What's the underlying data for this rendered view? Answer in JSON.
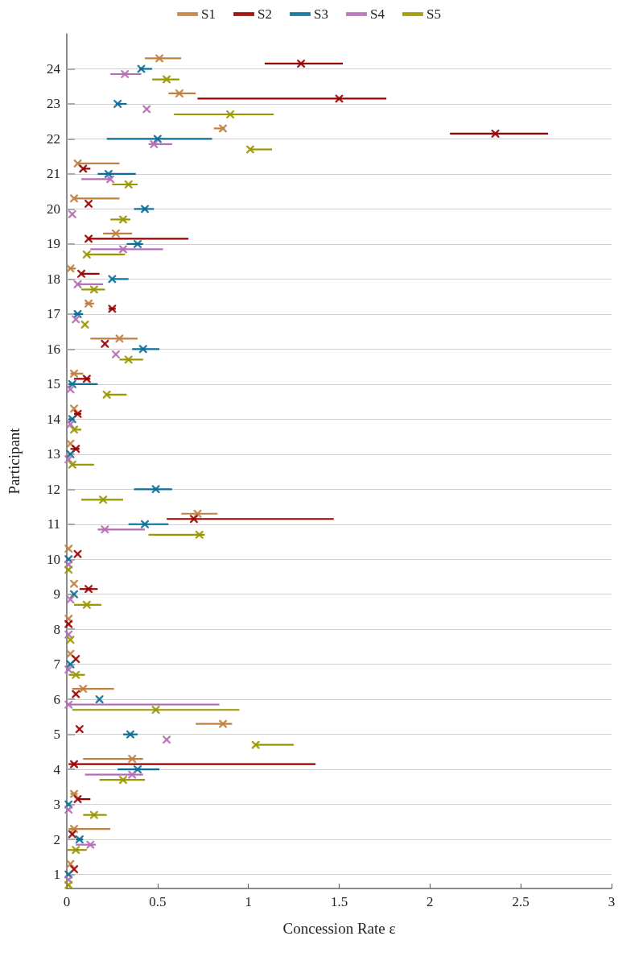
{
  "chart_data": {
    "type": "scatter",
    "xlabel": "Concession Rate ε",
    "ylabel": "Participant",
    "xlim": [
      0,
      3
    ],
    "xticks": [
      0,
      0.5,
      1,
      1.5,
      2,
      2.5,
      3
    ],
    "ylim": [
      0.6,
      25
    ],
    "yticks": [
      1,
      2,
      3,
      4,
      5,
      6,
      7,
      8,
      9,
      10,
      11,
      12,
      13,
      14,
      15,
      16,
      17,
      18,
      19,
      20,
      21,
      22,
      23,
      24
    ],
    "grid": "y",
    "legend": "top",
    "marker": "cross",
    "line_style": "solid",
    "series": [
      {
        "name": "S1",
        "color": "#c08040",
        "x": [
          0.02,
          0.04,
          0.04,
          0.36,
          0.86,
          0.09,
          0.02,
          0.01,
          0.04,
          0.01,
          0.72,
          null,
          0.02,
          0.04,
          0.04,
          0.29,
          0.12,
          0.02,
          0.27,
          0.04,
          0.06,
          0.86,
          0.62,
          0.51
        ],
        "values": [
          1.3,
          2.3,
          3.3,
          4.3,
          5.3,
          6.3,
          7.3,
          8.3,
          9.3,
          10.3,
          11.3,
          null,
          13.3,
          14.3,
          15.3,
          16.3,
          17.3,
          18.3,
          19.3,
          20.3,
          21.3,
          22.3,
          23.3,
          24.3
        ],
        "xerrors": [
          null,
          [
            0.01,
            0.24
          ],
          [
            0.02,
            0.06
          ],
          [
            0.09,
            0.42
          ],
          [
            0.71,
            0.91
          ],
          [
            0.03,
            0.26
          ],
          null,
          null,
          null,
          null,
          [
            0.63,
            0.83
          ],
          null,
          null,
          null,
          [
            0.02,
            0.09
          ],
          [
            0.13,
            0.39
          ],
          [
            0.1,
            0.15
          ],
          [
            0.01,
            0.05
          ],
          [
            0.2,
            0.36
          ],
          [
            0.04,
            0.29
          ],
          [
            0.06,
            0.29
          ],
          [
            0.81,
            0.87
          ],
          [
            0.56,
            0.71
          ],
          [
            0.43,
            0.63
          ]
        ]
      },
      {
        "name": "S2",
        "color": "#990000",
        "x": [
          0.04,
          0.03,
          0.06,
          0.04,
          0.07,
          0.05,
          0.05,
          0.01,
          0.12,
          0.06,
          0.7,
          null,
          0.05,
          0.06,
          0.11,
          0.21,
          0.25,
          0.08,
          0.12,
          0.12,
          0.09,
          2.36,
          1.5,
          1.29
        ],
        "values": [
          1.15,
          2.15,
          3.15,
          4.15,
          5.15,
          6.15,
          7.15,
          8.15,
          9.15,
          10.15,
          11.15,
          null,
          13.15,
          14.15,
          15.15,
          16.15,
          17.15,
          18.15,
          19.15,
          20.15,
          21.15,
          22.15,
          23.15,
          24.15
        ],
        "xerrors": [
          null,
          null,
          [
            0.06,
            0.13
          ],
          [
            0.01,
            1.37
          ],
          null,
          null,
          null,
          null,
          [
            0.07,
            0.17
          ],
          null,
          [
            0.55,
            1.47
          ],
          null,
          [
            0.02,
            0.07
          ],
          [
            0.04,
            0.08
          ],
          [
            0.04,
            0.13
          ],
          null,
          [
            0.23,
            0.27
          ],
          [
            0.08,
            0.18
          ],
          [
            0.12,
            0.67
          ],
          null,
          [
            0.09,
            0.13
          ],
          [
            2.11,
            2.65
          ],
          [
            0.72,
            1.76
          ],
          [
            1.09,
            1.52
          ]
        ]
      },
      {
        "name": "S3",
        "color": "#0a6e96",
        "x": [
          0.01,
          0.07,
          0.01,
          0.39,
          0.35,
          0.18,
          0.02,
          null,
          0.04,
          0.01,
          0.43,
          0.49,
          0.02,
          0.03,
          0.03,
          0.42,
          0.06,
          0.25,
          0.39,
          0.43,
          0.23,
          0.5,
          0.28,
          0.41
        ],
        "values": [
          1,
          2,
          3,
          4,
          5,
          6,
          7,
          null,
          9,
          10,
          11,
          12,
          13,
          14,
          15,
          16,
          17,
          18,
          19,
          20,
          21,
          22,
          23,
          24
        ],
        "xerrors": [
          null,
          [
            0.05,
            0.09
          ],
          null,
          [
            0.28,
            0.51
          ],
          [
            0.31,
            0.39
          ],
          null,
          null,
          null,
          null,
          null,
          [
            0.34,
            0.56
          ],
          [
            0.37,
            0.58
          ],
          null,
          [
            0.01,
            0.04
          ],
          [
            0.01,
            0.17
          ],
          [
            0.36,
            0.51
          ],
          [
            0.04,
            0.09
          ],
          [
            0.25,
            0.34
          ],
          [
            0.33,
            0.42
          ],
          [
            0.37,
            0.48
          ],
          [
            0.17,
            0.38
          ],
          [
            0.22,
            0.8
          ],
          [
            0.27,
            0.33
          ],
          [
            0.4,
            0.47
          ]
        ]
      },
      {
        "name": "S4",
        "color": "#b46eb4",
        "x": [
          0.01,
          0.13,
          0.01,
          0.36,
          0.55,
          0.01,
          0.01,
          0.01,
          0.02,
          0.01,
          0.21,
          null,
          0.01,
          0.02,
          0.02,
          0.27,
          0.05,
          0.06,
          0.31,
          0.03,
          0.24,
          0.48,
          0.44,
          0.32
        ],
        "values": [
          0.85,
          1.85,
          2.85,
          3.85,
          4.85,
          5.85,
          6.85,
          7.85,
          8.85,
          9.85,
          10.85,
          null,
          12.85,
          13.85,
          14.85,
          15.85,
          16.85,
          17.85,
          18.85,
          19.85,
          20.85,
          21.85,
          22.85,
          23.85
        ],
        "xerrors": [
          null,
          [
            0.05,
            0.16
          ],
          null,
          [
            0.1,
            0.42
          ],
          null,
          [
            0.01,
            0.84
          ],
          null,
          null,
          null,
          null,
          [
            0.17,
            0.43
          ],
          null,
          null,
          null,
          null,
          null,
          null,
          [
            0.06,
            0.2
          ],
          [
            0.13,
            0.53
          ],
          null,
          [
            0.08,
            0.24
          ],
          [
            0.45,
            0.58
          ],
          null,
          [
            0.24,
            0.41
          ]
        ]
      },
      {
        "name": "S5",
        "color": "#9a9600",
        "x": [
          0.01,
          0.05,
          0.15,
          0.31,
          1.04,
          0.49,
          0.05,
          0.02,
          0.11,
          0.01,
          0.73,
          0.2,
          0.03,
          0.04,
          0.22,
          0.34,
          0.1,
          0.15,
          0.11,
          0.31,
          0.34,
          1.01,
          0.9,
          0.55
        ],
        "values": [
          0.7,
          1.7,
          2.7,
          3.7,
          4.7,
          5.7,
          6.7,
          7.7,
          8.7,
          9.7,
          10.7,
          11.7,
          12.7,
          13.7,
          14.7,
          15.7,
          16.7,
          17.7,
          18.7,
          19.7,
          20.7,
          21.7,
          22.7,
          23.7
        ],
        "xerrors": [
          null,
          [
            0.0,
            0.11
          ],
          [
            0.09,
            0.22
          ],
          [
            0.18,
            0.43
          ],
          [
            1.04,
            1.25
          ],
          [
            0.03,
            0.95
          ],
          [
            0.01,
            0.1
          ],
          null,
          [
            0.04,
            0.19
          ],
          null,
          [
            0.45,
            0.76
          ],
          [
            0.08,
            0.31
          ],
          [
            0.03,
            0.15
          ],
          [
            0.04,
            0.08
          ],
          [
            0.22,
            0.33
          ],
          [
            0.29,
            0.42
          ],
          null,
          [
            0.08,
            0.21
          ],
          [
            0.11,
            0.32
          ],
          [
            0.24,
            0.35
          ],
          [
            0.25,
            0.39
          ],
          [
            1.01,
            1.13
          ],
          [
            0.59,
            1.14
          ],
          [
            0.47,
            0.62
          ]
        ]
      }
    ]
  }
}
